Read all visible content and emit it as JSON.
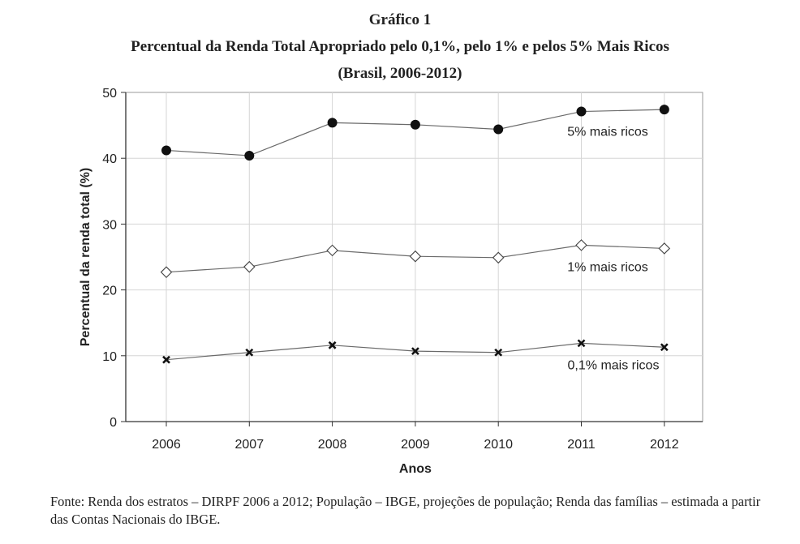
{
  "figure": {
    "number": "Gráfico 1",
    "title": "Percentual da Renda Total Apropriado pelo 0,1%, pelo 1% e pelos 5% Mais Ricos",
    "subtitle": "(Brasil, 2006-2012)",
    "source": "Fonte: Renda dos estratos – DIRPF 2006 a 2012; População – IBGE, projeções de população; Renda das famílias – estimada a partir das Contas Nacionais do IBGE."
  },
  "chart_data": {
    "type": "line",
    "xlabel": "Anos",
    "ylabel": "Percentual da renda total (%)",
    "categories": [
      "2006",
      "2007",
      "2008",
      "2009",
      "2010",
      "2011",
      "2012"
    ],
    "ylim": [
      0,
      50
    ],
    "yticks": [
      0,
      10,
      20,
      30,
      40,
      50
    ],
    "grid": true,
    "series": [
      {
        "name": "5% mais ricos",
        "marker": "filled-circle",
        "values": [
          41.2,
          40.4,
          45.4,
          45.1,
          44.4,
          47.1,
          47.4
        ]
      },
      {
        "name": "1% mais ricos",
        "marker": "open-diamond",
        "values": [
          22.7,
          23.5,
          26.0,
          25.1,
          24.9,
          26.8,
          26.3
        ]
      },
      {
        "name": "0,1% mais ricos",
        "marker": "x-cross",
        "values": [
          9.4,
          10.5,
          11.6,
          10.7,
          10.5,
          11.9,
          11.3
        ]
      }
    ]
  }
}
